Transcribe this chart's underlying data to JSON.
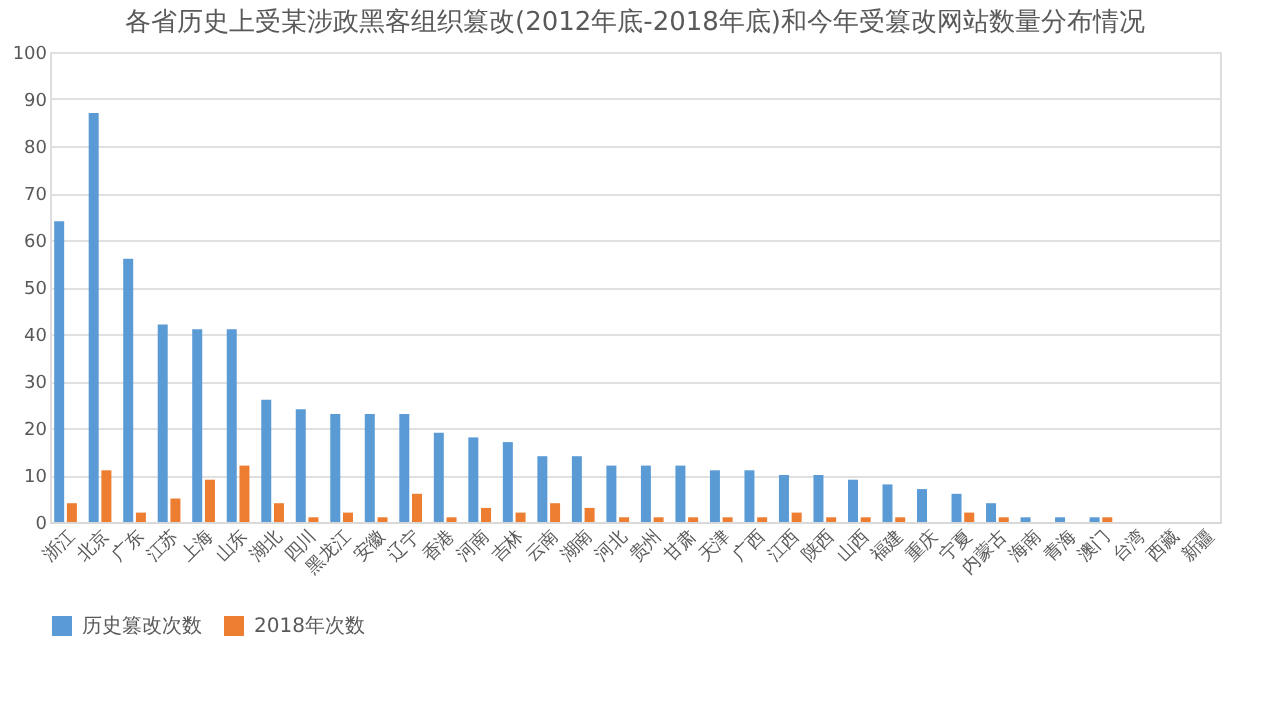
{
  "chart_data": {
    "type": "bar",
    "title": "各省历史上受某涉政黑客组织篡改(2012年底-2018年底)和今年受篡改网站数量分布情况",
    "categories": [
      "浙江",
      "北京",
      "广东",
      "江苏",
      "上海",
      "山东",
      "湖北",
      "四川",
      "黑龙江",
      "安徽",
      "辽宁",
      "香港",
      "河南",
      "吉林",
      "云南",
      "湖南",
      "河北",
      "贵州",
      "甘肃",
      "天津",
      "广西",
      "江西",
      "陕西",
      "山西",
      "福建",
      "重庆",
      "宁夏",
      "内蒙古",
      "海南",
      "青海",
      "澳门",
      "台湾",
      "西藏",
      "新疆"
    ],
    "series": [
      {
        "name": "历史篡改次数",
        "color": "#5b9bd5",
        "values": [
          64,
          87,
          56,
          42,
          41,
          41,
          26,
          24,
          23,
          23,
          23,
          19,
          18,
          17,
          14,
          14,
          12,
          12,
          12,
          11,
          11,
          10,
          10,
          9,
          8,
          7,
          6,
          4,
          1,
          1,
          1,
          0,
          0,
          0
        ]
      },
      {
        "name": "2018年次数",
        "color": "#ed7d31",
        "values": [
          4,
          11,
          2,
          5,
          9,
          12,
          4,
          1,
          2,
          1,
          6,
          1,
          3,
          2,
          4,
          3,
          1,
          1,
          1,
          1,
          1,
          2,
          1,
          1,
          1,
          0,
          2,
          1,
          0,
          0,
          1,
          0,
          0,
          0
        ]
      }
    ],
    "ylim": [
      0,
      100
    ],
    "yticks": [
      0,
      10,
      20,
      30,
      40,
      50,
      60,
      70,
      80,
      90,
      100
    ],
    "grid": "y",
    "legend": "bottom"
  }
}
